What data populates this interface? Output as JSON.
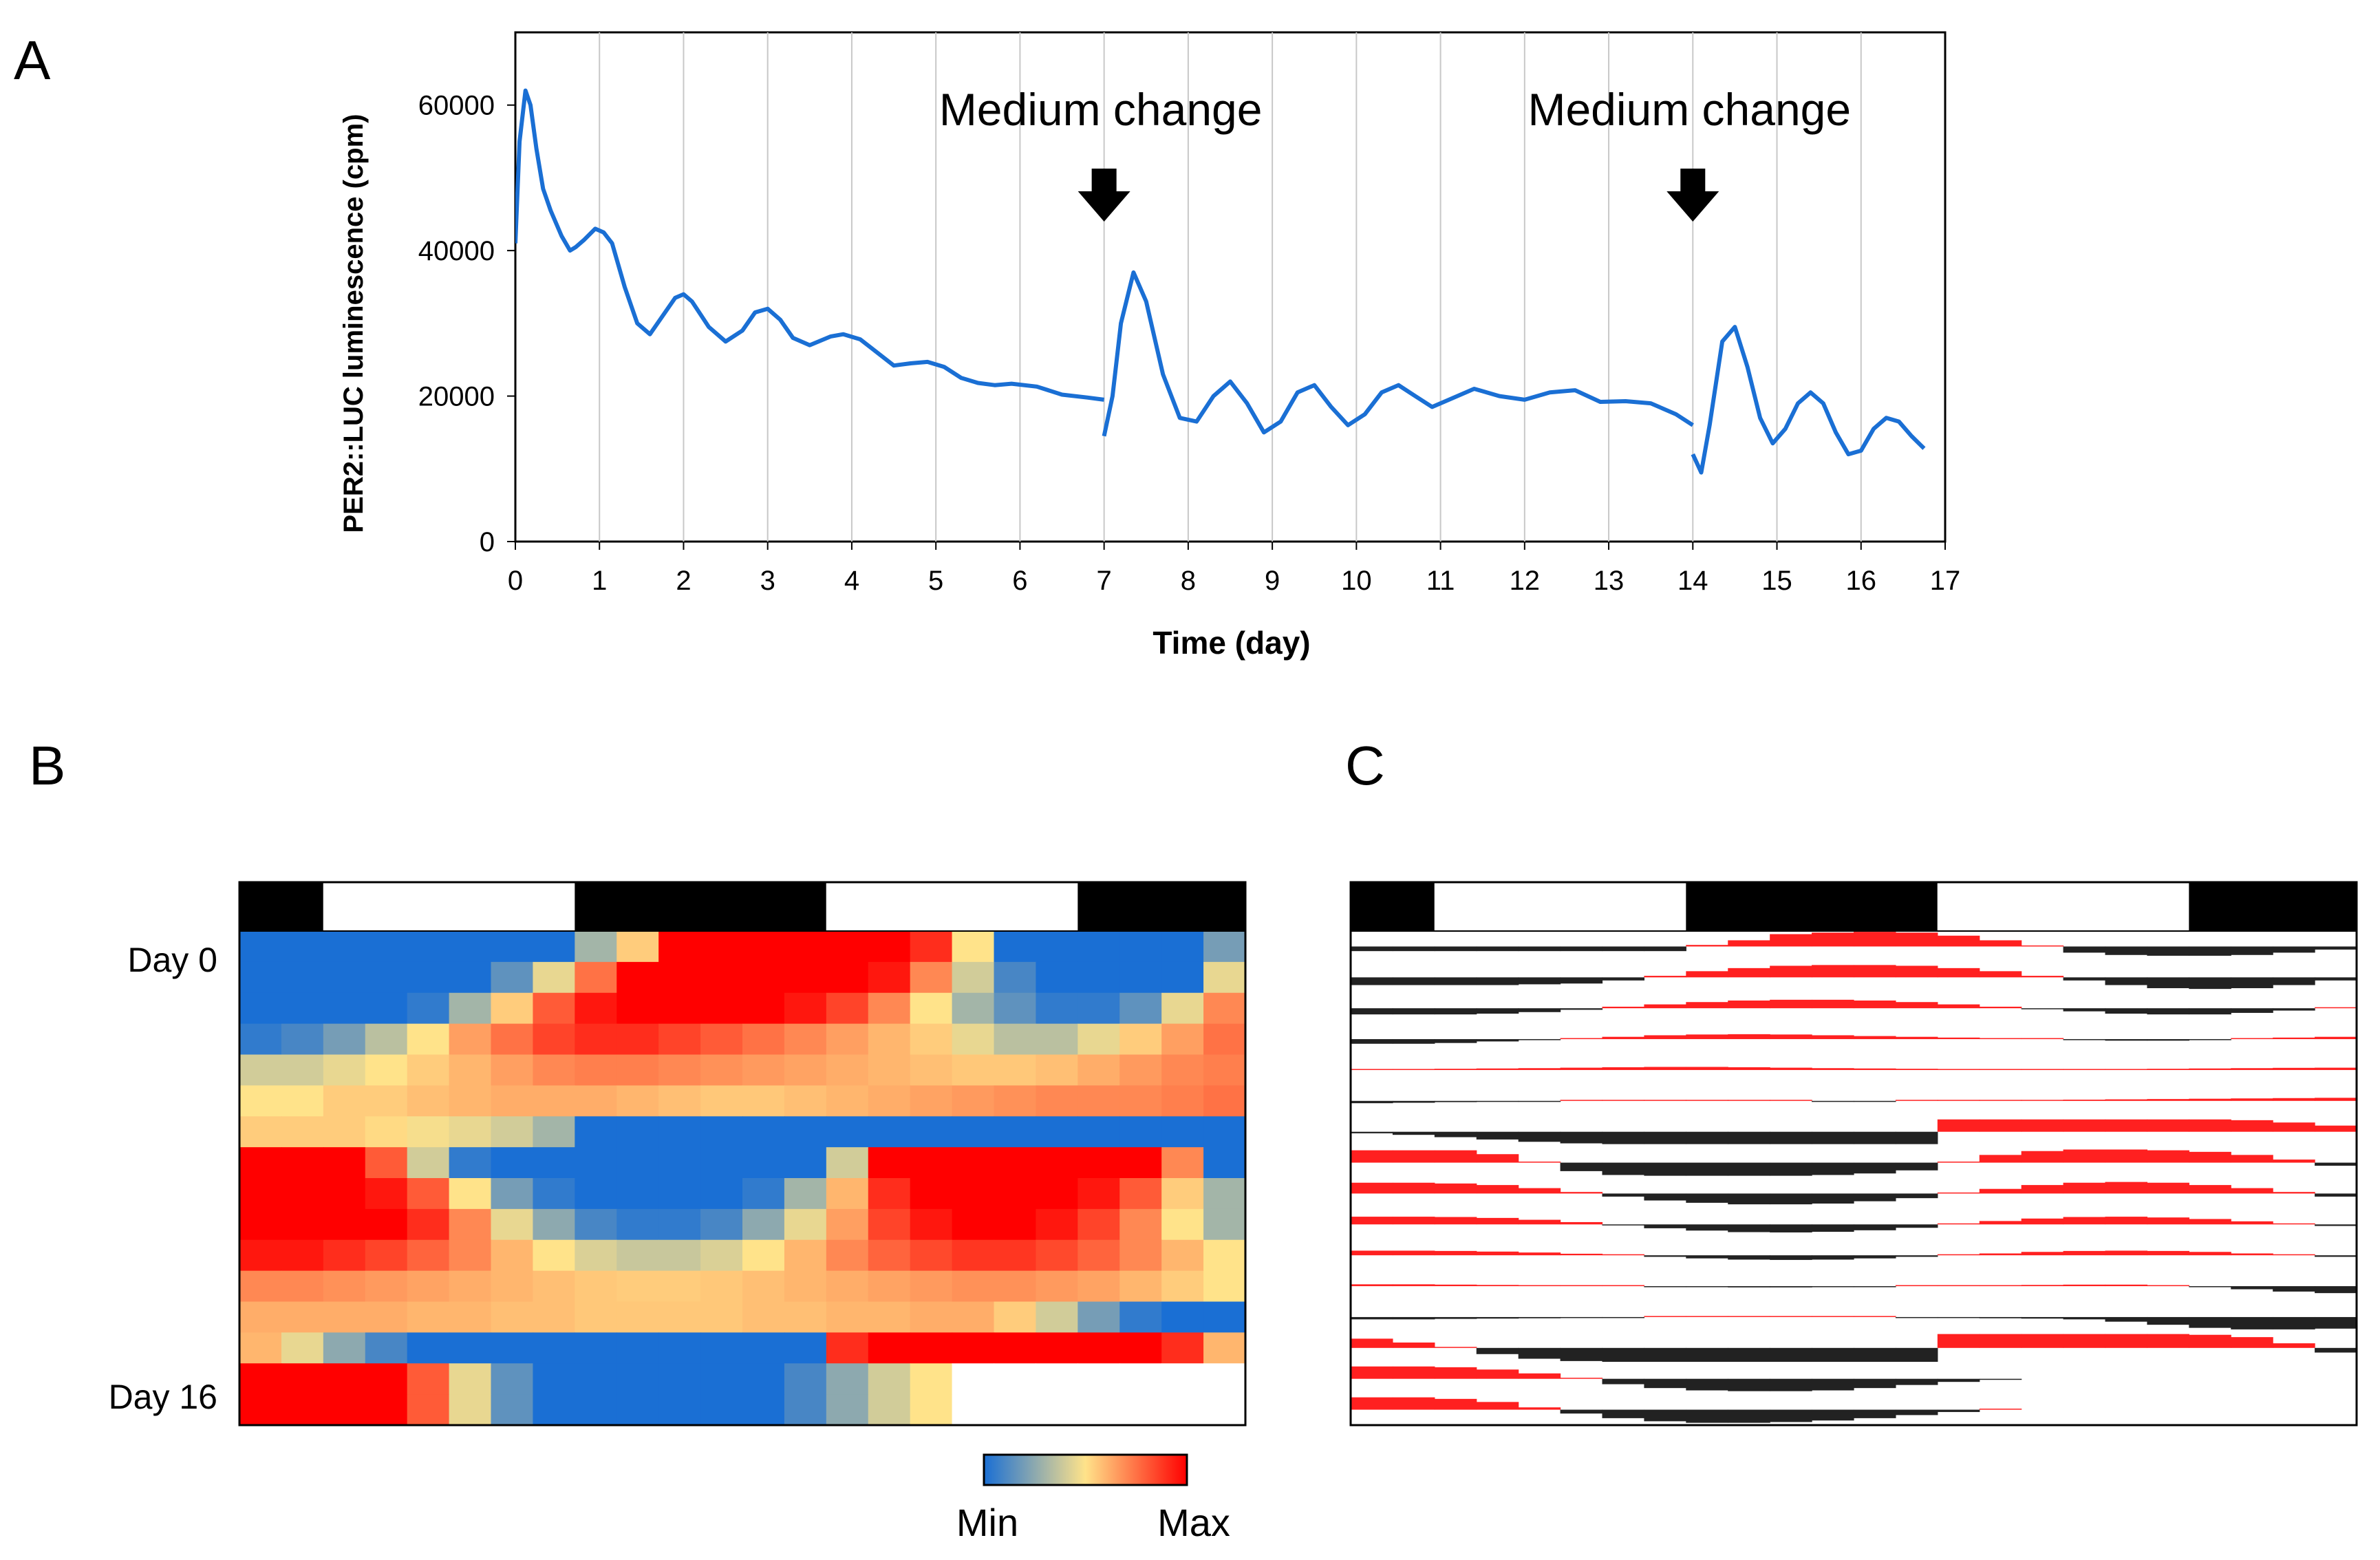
{
  "panels": {
    "a": {
      "label": "A"
    },
    "b": {
      "label": "B",
      "row_labels": [
        "Day 0",
        "Day 16"
      ]
    },
    "c": {
      "label": "C"
    }
  },
  "colorbar": {
    "min_label": "Min",
    "max_label": "Max",
    "colors": [
      "#1a6fd4",
      "#ffe38a",
      "#ff0000"
    ]
  },
  "chart_data": [
    {
      "type": "line",
      "title": "",
      "xlabel": "Time (day)",
      "ylabel": "PER2::LUC  luminescence (cpm)",
      "xlim": [
        0,
        17
      ],
      "ylim": [
        0,
        70000
      ],
      "xticks": [
        0,
        1,
        2,
        3,
        4,
        5,
        6,
        7,
        8,
        9,
        10,
        11,
        12,
        13,
        14,
        15,
        16,
        17
      ],
      "yticks": [
        0,
        20000,
        40000,
        60000
      ],
      "grid": "vertical",
      "line_color": "#1a6fd4",
      "annotations": [
        {
          "text": "Medium change",
          "x": 7
        },
        {
          "text": "Medium change",
          "x": 14
        }
      ],
      "series": [
        {
          "segments": [
            {
              "x": [
                0,
                0.05,
                0.12,
                0.18,
                0.25,
                0.33,
                0.42,
                0.55,
                0.65,
                0.72,
                0.82,
                0.95,
                1.05,
                1.15,
                1.3,
                1.45,
                1.6,
                1.75,
                1.9,
                2.0,
                2.1,
                2.3,
                2.5,
                2.7,
                2.85,
                3.0,
                3.15,
                3.3,
                3.5,
                3.75,
                3.9,
                4.1,
                4.3,
                4.5,
                4.7,
                4.9,
                5.1,
                5.3,
                5.5,
                5.7,
                5.9,
                6.2,
                6.5,
                6.8,
                7.0
              ],
              "y": [
                41000,
                55000,
                62000,
                60000,
                54000,
                48500,
                45500,
                42000,
                40000,
                40500,
                41500,
                43000,
                42500,
                41000,
                35000,
                30000,
                28500,
                31000,
                33500,
                34000,
                33000,
                29500,
                27500,
                29000,
                31500,
                32000,
                30500,
                28000,
                27000,
                28200,
                28500,
                27800,
                26000,
                24200,
                24500,
                24700,
                24000,
                22500,
                21800,
                21500,
                21700,
                21300,
                20200,
                19800,
                19500
              ]
            },
            {
              "x": [
                7.0,
                7.1,
                7.2,
                7.35,
                7.5,
                7.7,
                7.9,
                8.1,
                8.3,
                8.5,
                8.7,
                8.9,
                9.1,
                9.3,
                9.5,
                9.7,
                9.9,
                10.1,
                10.3,
                10.5,
                10.7,
                10.9,
                11.1,
                11.4,
                11.7,
                12.0,
                12.3,
                12.6,
                12.9,
                13.2,
                13.5,
                13.8,
                14.0
              ],
              "y": [
                14500,
                20000,
                30000,
                37000,
                33000,
                23000,
                17000,
                16500,
                20000,
                22000,
                19000,
                15000,
                16500,
                20500,
                21500,
                18500,
                16000,
                17500,
                20500,
                21500,
                20000,
                18500,
                19500,
                21000,
                20000,
                19500,
                20500,
                20800,
                19200,
                19300,
                19000,
                17500,
                16000
              ]
            },
            {
              "x": [
                14.0,
                14.1,
                14.2,
                14.35,
                14.5,
                14.65,
                14.8,
                14.95,
                15.1,
                15.25,
                15.4,
                15.55,
                15.7,
                15.85,
                16.0,
                16.15,
                16.3,
                16.45,
                16.6,
                16.75
              ],
              "y": [
                12000,
                9500,
                16000,
                27500,
                29500,
                24000,
                17000,
                13500,
                15500,
                19000,
                20500,
                19000,
                15000,
                12000,
                12500,
                15500,
                17000,
                16500,
                14500,
                12800
              ]
            }
          ]
        }
      ]
    },
    {
      "type": "heatmap",
      "rows": 16,
      "cols": 24,
      "value_range": [
        0,
        1
      ],
      "light_dark_bar": [
        {
          "from": 0,
          "to": 2,
          "state": "dark"
        },
        {
          "from": 2,
          "to": 8,
          "state": "light"
        },
        {
          "from": 8,
          "to": 14,
          "state": "dark"
        },
        {
          "from": 14,
          "to": 20,
          "state": "light"
        },
        {
          "from": 20,
          "to": 24,
          "state": "dark"
        }
      ],
      "values": [
        [
          0.0,
          0.0,
          0.0,
          0.0,
          0.0,
          0.0,
          0.0,
          0.0,
          0.3,
          0.55,
          1.0,
          1.0,
          1.0,
          1.0,
          1.0,
          1.0,
          0.9,
          0.5,
          0.0,
          0.0,
          0.0,
          0.0,
          0.0,
          0.2
        ],
        [
          0.0,
          0.0,
          0.0,
          0.0,
          0.0,
          0.0,
          0.15,
          0.45,
          0.75,
          1.0,
          1.0,
          1.0,
          1.0,
          1.0,
          1.0,
          0.95,
          0.7,
          0.4,
          0.1,
          0.0,
          0.0,
          0.0,
          0.0,
          0.45
        ],
        [
          0.0,
          0.0,
          0.0,
          0.0,
          0.05,
          0.3,
          0.55,
          0.8,
          0.95,
          1.0,
          1.0,
          1.0,
          1.0,
          0.95,
          0.85,
          0.7,
          0.5,
          0.3,
          0.15,
          0.05,
          0.05,
          0.15,
          0.45,
          0.7
        ],
        [
          0.05,
          0.1,
          0.2,
          0.35,
          0.5,
          0.65,
          0.75,
          0.85,
          0.9,
          0.9,
          0.85,
          0.8,
          0.75,
          0.7,
          0.65,
          0.6,
          0.55,
          0.45,
          0.35,
          0.35,
          0.45,
          0.55,
          0.65,
          0.75
        ],
        [
          0.4,
          0.4,
          0.45,
          0.5,
          0.55,
          0.6,
          0.65,
          0.7,
          0.72,
          0.72,
          0.7,
          0.68,
          0.66,
          0.64,
          0.62,
          0.6,
          0.58,
          0.56,
          0.56,
          0.58,
          0.62,
          0.66,
          0.7,
          0.72
        ],
        [
          0.5,
          0.5,
          0.55,
          0.55,
          0.58,
          0.6,
          0.62,
          0.62,
          0.62,
          0.6,
          0.58,
          0.56,
          0.56,
          0.58,
          0.6,
          0.62,
          0.64,
          0.66,
          0.68,
          0.7,
          0.7,
          0.7,
          0.72,
          0.75
        ],
        [
          0.55,
          0.55,
          0.55,
          0.52,
          0.48,
          0.45,
          0.4,
          0.3,
          0.0,
          0.0,
          0.0,
          0.0,
          0.0,
          0.0,
          0.0,
          0.0,
          0.0,
          0.0,
          0.0,
          0.0,
          0.0,
          0.0,
          0.0,
          0.0
        ],
        [
          1.0,
          1.0,
          1.0,
          0.8,
          0.4,
          0.05,
          0.0,
          0.0,
          0.0,
          0.0,
          0.0,
          0.0,
          0.0,
          0.0,
          0.4,
          1.0,
          1.0,
          1.0,
          1.0,
          1.0,
          1.0,
          1.0,
          0.7,
          0.0
        ],
        [
          1.0,
          1.0,
          1.0,
          0.95,
          0.8,
          0.5,
          0.2,
          0.05,
          0.0,
          0.0,
          0.0,
          0.0,
          0.05,
          0.3,
          0.6,
          0.9,
          1.0,
          1.0,
          1.0,
          1.0,
          0.95,
          0.8,
          0.55,
          0.3
        ],
        [
          1.0,
          1.0,
          1.0,
          1.0,
          0.9,
          0.7,
          0.45,
          0.25,
          0.1,
          0.05,
          0.05,
          0.1,
          0.25,
          0.45,
          0.65,
          0.85,
          0.95,
          1.0,
          1.0,
          0.95,
          0.85,
          0.7,
          0.5,
          0.3
        ],
        [
          0.95,
          0.95,
          0.9,
          0.85,
          0.78,
          0.7,
          0.6,
          0.5,
          0.42,
          0.38,
          0.38,
          0.42,
          0.5,
          0.6,
          0.7,
          0.78,
          0.84,
          0.88,
          0.88,
          0.84,
          0.78,
          0.7,
          0.6,
          0.5
        ],
        [
          0.7,
          0.7,
          0.68,
          0.66,
          0.64,
          0.62,
          0.6,
          0.58,
          0.56,
          0.55,
          0.55,
          0.56,
          0.58,
          0.6,
          0.62,
          0.64,
          0.66,
          0.68,
          0.68,
          0.66,
          0.64,
          0.6,
          0.55,
          0.5
        ],
        [
          0.62,
          0.62,
          0.62,
          0.62,
          0.6,
          0.6,
          0.58,
          0.58,
          0.56,
          0.56,
          0.56,
          0.56,
          0.58,
          0.58,
          0.6,
          0.6,
          0.62,
          0.62,
          0.55,
          0.4,
          0.2,
          0.05,
          0.0,
          0.0
        ],
        [
          0.6,
          0.45,
          0.25,
          0.1,
          0.0,
          0.0,
          0.0,
          0.0,
          0.0,
          0.0,
          0.0,
          0.0,
          0.0,
          0.0,
          0.9,
          1.0,
          1.0,
          1.0,
          1.0,
          1.0,
          1.0,
          1.0,
          0.9,
          0.6
        ],
        [
          1.0,
          1.0,
          1.0,
          1.0,
          0.8,
          0.45,
          0.15,
          0.0,
          0.0,
          0.0,
          0.0,
          0.0,
          0.0,
          0.1,
          0.25,
          0.4,
          0.5,
          null,
          null,
          null,
          null,
          null,
          null,
          null
        ],
        [
          1.0,
          1.0,
          1.0,
          1.0,
          0.8,
          0.45,
          0.15,
          0.0,
          0.0,
          0.0,
          0.0,
          0.0,
          0.0,
          0.1,
          0.25,
          0.4,
          0.5,
          null,
          null,
          null,
          null,
          null,
          null,
          null
        ]
      ]
    },
    {
      "type": "area",
      "rows": 16,
      "cols": 24,
      "positive_color": "#ff2020",
      "negative_color": "#222222",
      "light_dark_bar": [
        {
          "from": 0,
          "to": 2,
          "state": "dark"
        },
        {
          "from": 2,
          "to": 8,
          "state": "light"
        },
        {
          "from": 8,
          "to": 14,
          "state": "dark"
        },
        {
          "from": 14,
          "to": 20,
          "state": "light"
        },
        {
          "from": 20,
          "to": 24,
          "state": "dark"
        }
      ],
      "values": [
        [
          -0.3,
          -0.3,
          -0.3,
          -0.3,
          -0.3,
          -0.3,
          -0.3,
          -0.3,
          0.1,
          0.4,
          0.8,
          0.9,
          0.95,
          0.9,
          0.7,
          0.4,
          0.0,
          -0.4,
          -0.55,
          -0.6,
          -0.6,
          -0.55,
          -0.4,
          -0.2
        ],
        [
          -0.5,
          -0.5,
          -0.5,
          -0.5,
          -0.45,
          -0.4,
          -0.2,
          0.1,
          0.4,
          0.6,
          0.75,
          0.8,
          0.8,
          0.75,
          0.6,
          0.4,
          0.1,
          -0.2,
          -0.5,
          -0.7,
          -0.75,
          -0.7,
          -0.5,
          -0.2
        ],
        [
          -0.4,
          -0.4,
          -0.4,
          -0.35,
          -0.25,
          -0.1,
          0.1,
          0.25,
          0.4,
          0.5,
          0.55,
          0.55,
          0.5,
          0.4,
          0.25,
          0.1,
          -0.05,
          -0.2,
          -0.35,
          -0.4,
          -0.4,
          -0.3,
          -0.15,
          0.0
        ],
        [
          -0.3,
          -0.3,
          -0.25,
          -0.15,
          -0.05,
          0.05,
          0.15,
          0.25,
          0.3,
          0.32,
          0.3,
          0.25,
          0.2,
          0.15,
          0.1,
          0.05,
          0.0,
          -0.05,
          -0.1,
          -0.1,
          -0.05,
          0.05,
          0.1,
          0.15
        ],
        [
          0.05,
          0.05,
          0.08,
          0.1,
          0.12,
          0.15,
          0.18,
          0.2,
          0.2,
          0.18,
          0.15,
          0.12,
          0.1,
          0.08,
          0.06,
          0.05,
          0.05,
          0.05,
          0.06,
          0.08,
          0.1,
          0.12,
          0.14,
          0.15
        ],
        [
          -0.15,
          -0.12,
          -0.08,
          -0.05,
          -0.02,
          0.0,
          0.02,
          0.04,
          0.04,
          0.02,
          0.0,
          -0.02,
          -0.02,
          0.0,
          0.02,
          0.04,
          0.06,
          0.08,
          0.1,
          0.12,
          0.14,
          0.16,
          0.18,
          0.2
        ],
        [
          -0.1,
          -0.2,
          -0.35,
          -0.5,
          -0.65,
          -0.75,
          -0.8,
          -0.8,
          -0.8,
          -0.8,
          -0.8,
          -0.8,
          -0.8,
          -0.8,
          0.8,
          0.8,
          0.8,
          0.8,
          0.8,
          0.8,
          0.8,
          0.75,
          0.6,
          0.4
        ],
        [
          0.8,
          0.8,
          0.8,
          0.55,
          0.0,
          -0.55,
          -0.8,
          -0.85,
          -0.85,
          -0.85,
          -0.85,
          -0.8,
          -0.7,
          -0.5,
          0.0,
          0.5,
          0.75,
          0.85,
          0.85,
          0.8,
          0.7,
          0.5,
          0.2,
          -0.2
        ],
        [
          0.7,
          0.7,
          0.65,
          0.55,
          0.35,
          0.1,
          -0.2,
          -0.45,
          -0.6,
          -0.7,
          -0.7,
          -0.65,
          -0.5,
          -0.3,
          0.0,
          0.3,
          0.55,
          0.7,
          0.75,
          0.7,
          0.55,
          0.35,
          0.1,
          -0.2
        ],
        [
          0.5,
          0.5,
          0.48,
          0.42,
          0.3,
          0.15,
          -0.05,
          -0.25,
          -0.4,
          -0.5,
          -0.52,
          -0.48,
          -0.38,
          -0.22,
          0.0,
          0.22,
          0.38,
          0.48,
          0.5,
          0.45,
          0.35,
          0.2,
          0.05,
          -0.1
        ],
        [
          0.3,
          0.3,
          0.28,
          0.24,
          0.18,
          0.1,
          0.0,
          -0.1,
          -0.2,
          -0.28,
          -0.3,
          -0.28,
          -0.2,
          -0.1,
          0.0,
          0.12,
          0.22,
          0.28,
          0.3,
          0.28,
          0.22,
          0.12,
          0.0,
          -0.1
        ],
        [
          0.12,
          0.12,
          0.1,
          0.08,
          0.05,
          0.02,
          0.0,
          -0.03,
          -0.06,
          -0.08,
          -0.08,
          -0.06,
          -0.03,
          0.0,
          0.03,
          0.06,
          0.08,
          0.1,
          0.1,
          0.05,
          -0.05,
          -0.2,
          -0.35,
          -0.45
        ],
        [
          -0.15,
          -0.15,
          -0.12,
          -0.1,
          -0.08,
          -0.05,
          -0.02,
          0.0,
          0.02,
          0.03,
          0.03,
          0.02,
          0.0,
          -0.02,
          -0.05,
          -0.08,
          -0.1,
          -0.15,
          -0.3,
          -0.5,
          -0.7,
          -0.8,
          -0.8,
          -0.75
        ],
        [
          0.6,
          0.35,
          0.0,
          -0.4,
          -0.7,
          -0.85,
          -0.9,
          -0.9,
          -0.9,
          -0.9,
          -0.9,
          -0.9,
          -0.9,
          -0.9,
          0.9,
          0.9,
          0.9,
          0.9,
          0.9,
          0.9,
          0.85,
          0.7,
          0.3,
          -0.3
        ],
        [
          0.8,
          0.8,
          0.75,
          0.6,
          0.35,
          0.0,
          -0.35,
          -0.6,
          -0.75,
          -0.8,
          -0.8,
          -0.75,
          -0.6,
          -0.4,
          -0.2,
          -0.05,
          null,
          null,
          null,
          null,
          null,
          null,
          null,
          null
        ],
        [
          0.8,
          0.8,
          0.7,
          0.5,
          0.15,
          -0.25,
          -0.55,
          -0.75,
          -0.85,
          -0.85,
          -0.8,
          -0.7,
          -0.55,
          -0.35,
          -0.15,
          0.0,
          null,
          null,
          null,
          null,
          null,
          null,
          null,
          null
        ]
      ]
    }
  ]
}
